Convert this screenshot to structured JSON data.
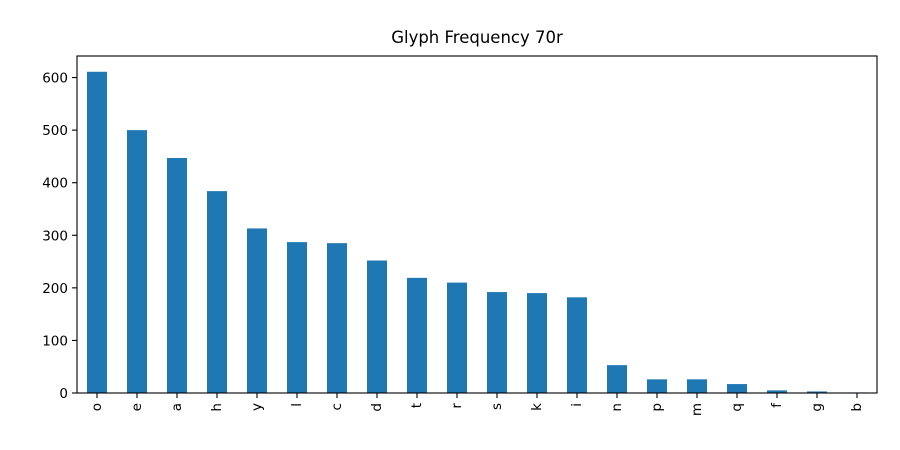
{
  "chart_data": {
    "type": "bar",
    "title": "Glyph Frequency 70r",
    "xlabel": "",
    "ylabel": "",
    "categories": [
      "o",
      "e",
      "a",
      "h",
      "y",
      "l",
      "c",
      "d",
      "t",
      "r",
      "s",
      "k",
      "i",
      "n",
      "p",
      "m",
      "q",
      "f",
      "g",
      "b"
    ],
    "values": [
      611,
      500,
      447,
      384,
      313,
      287,
      285,
      252,
      219,
      210,
      192,
      190,
      182,
      53,
      26,
      26,
      17,
      5,
      3,
      1
    ],
    "ylim": [
      0,
      641
    ],
    "yticks": [
      0,
      100,
      200,
      300,
      400,
      500,
      600
    ],
    "bar_color": "#1f77b4",
    "x_tick_rotation": "vertical",
    "grid": false,
    "legend": "none"
  }
}
